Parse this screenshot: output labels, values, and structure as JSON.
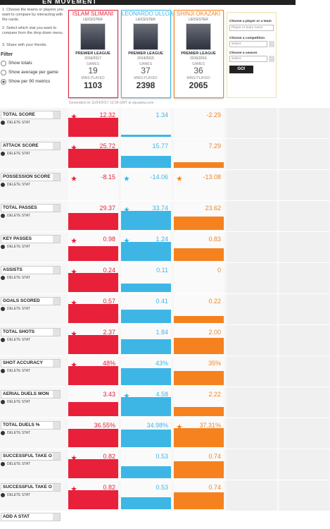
{
  "header": {
    "title": "EN MOVEMENT"
  },
  "instructions": [
    "1. Choose the teams or players you want to compare by interacting with the cards.",
    "2. Select which stat you want to compare from the drop down menu.",
    "3. Share with your friends."
  ],
  "filter": {
    "title": "Filter",
    "options": [
      "Show totals",
      "Show average per game",
      "Show per 90 metrics"
    ],
    "selected": 2
  },
  "card_labels": {
    "games": "GAMES",
    "mins": "MINS PLAYED"
  },
  "cards": [
    {
      "name": "ISLAM SLIMANI",
      "team": "LEICESTER",
      "competition": "PREMIER LEAGUE",
      "season": "2016/2017",
      "games": 19,
      "mins": 1103,
      "color": "#e8203a"
    },
    {
      "name": "LEONARDO ULLOA",
      "team": "LEICESTER",
      "competition": "PREMIER LEAGUE",
      "season": "2014/2015",
      "games": 37,
      "mins": 2398,
      "color": "#3db6e6"
    },
    {
      "name": "SHINJI OKAZAKI",
      "team": "LEICESTER",
      "competition": "PREMIER LEAGUE",
      "season": "2015/2016",
      "games": 36,
      "mins": 2065,
      "color": "#f5821f"
    }
  ],
  "search": {
    "player_label": "Choose a player or a team",
    "player_placeholder": "Player or team name",
    "competition_label": "Choose a competition",
    "competition_value": "Select",
    "season_label": "Choose a season",
    "season_value": "Select",
    "button": "GO!"
  },
  "generated": "Generated on 11/04/2017 13:36 GMT at squawka.com",
  "delete_label": "DELETE STAT",
  "stats": [
    {
      "name": "TOTAL SCORE",
      "values": [
        12.32,
        1.34,
        -2.29
      ],
      "best": [
        true,
        false,
        false
      ]
    },
    {
      "name": "ATTACK SCORE",
      "values": [
        25.72,
        15.77,
        7.29
      ],
      "best": [
        true,
        false,
        false
      ]
    },
    {
      "name": "POSSESSION SCORE",
      "values": [
        -8.15,
        -14.06,
        -13.08
      ],
      "best": [
        true,
        true,
        true
      ]
    },
    {
      "name": "TOTAL PASSES",
      "values": [
        29.37,
        33.74,
        23.62
      ],
      "best": [
        false,
        true,
        false
      ]
    },
    {
      "name": "KEY PASSES",
      "values": [
        0.98,
        1.24,
        0.83
      ],
      "best": [
        true,
        true,
        false
      ]
    },
    {
      "name": "ASSISTS",
      "values": [
        0.24,
        0.11,
        0
      ],
      "best": [
        true,
        false,
        false
      ]
    },
    {
      "name": "GOALS SCORED",
      "values": [
        0.57,
        0.41,
        0.22
      ],
      "best": [
        true,
        false,
        false
      ]
    },
    {
      "name": "TOTAL SHOTS",
      "values": [
        2.37,
        1.84,
        2
      ],
      "value_labels": [
        "2.37",
        "1.84",
        "2.00"
      ],
      "best": [
        true,
        false,
        false
      ]
    },
    {
      "name": "SHOT ACCURACY",
      "values": [
        48,
        43,
        35
      ],
      "value_labels": [
        "48%",
        "43%",
        "35%"
      ],
      "best": [
        true,
        false,
        false
      ]
    },
    {
      "name": "AERIAL DUELS WON",
      "values": [
        3.43,
        4.58,
        2.22
      ],
      "best": [
        false,
        true,
        false
      ]
    },
    {
      "name": "TOTAL DUELS %",
      "values": [
        36.55,
        34.98,
        37.31
      ],
      "value_labels": [
        "36.55%",
        "34.98%",
        "37.31%"
      ],
      "best": [
        false,
        false,
        true
      ]
    },
    {
      "name": "SUCCESSFUL TAKE O",
      "values": [
        0.82,
        0.53,
        0.74
      ],
      "best": [
        true,
        false,
        false
      ]
    },
    {
      "name": "SUCCESSFUL TAKE O",
      "values": [
        0.82,
        0.53,
        0.74
      ],
      "best": [
        true,
        false,
        false
      ]
    }
  ],
  "add_stat": "ADD A STAT"
}
